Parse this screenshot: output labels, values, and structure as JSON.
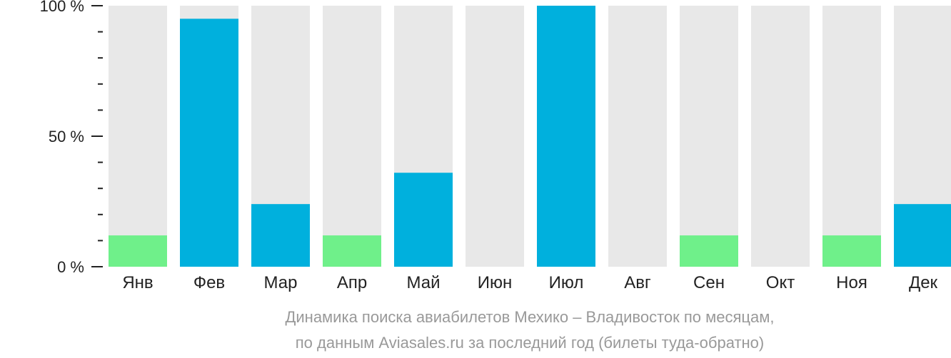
{
  "chart_data": {
    "type": "bar",
    "categories": [
      "Янв",
      "Фев",
      "Мар",
      "Апр",
      "Май",
      "Июн",
      "Июл",
      "Авг",
      "Сен",
      "Окт",
      "Ноя",
      "Дек"
    ],
    "values": [
      12,
      95,
      24,
      12,
      36,
      0,
      100,
      0,
      12,
      0,
      12,
      24
    ],
    "ylim": [
      0,
      100
    ],
    "y_ticks": [
      {
        "value": 0,
        "label": "0 %"
      },
      {
        "value": 50,
        "label": "50 %"
      },
      {
        "value": 100,
        "label": "100 %"
      }
    ],
    "minor_tick_step": 10,
    "xlabel": "",
    "ylabel": "",
    "grid": false,
    "title": "",
    "caption_lines": [
      "Динамика поиска авиабилетов Мехико – Владивосток по месяцам,",
      "по данным Aviasales.ru за последний год (билеты туда-обратно)"
    ],
    "colors": {
      "track": "#e8e8e8",
      "bar_primary": "#00b0dd",
      "bar_low": "#6ff08a",
      "axis": "#222222",
      "caption": "#999999"
    },
    "low_threshold": 15
  }
}
